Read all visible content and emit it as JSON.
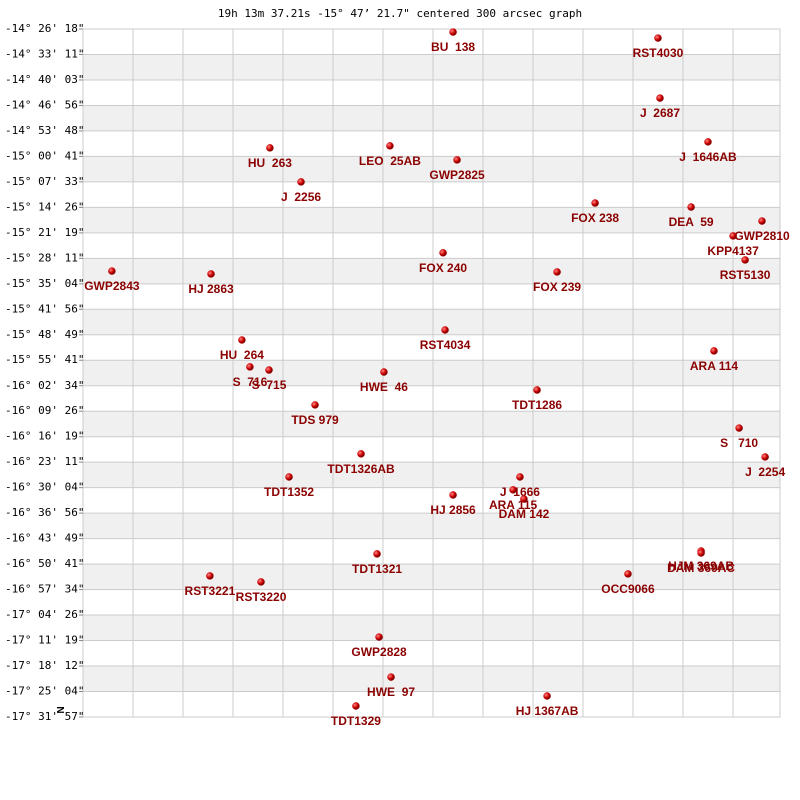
{
  "chart_data": {
    "type": "scatter",
    "title": "19h 13m 37.21s -15° 47’ 21.7\" centered 300 arcsec graph",
    "north_label": "N",
    "color": "#cc0000",
    "label_color": "#8b0000",
    "grid": true,
    "xlim": [
      -1.568,
      1.568
    ],
    "ylim": [
      -14.43833,
      -17.5325
    ],
    "yticks": [
      {
        "value": -14.43833,
        "label": "-14° 26' 18\""
      },
      {
        "value": -14.55306,
        "label": "-14° 33' 11\""
      },
      {
        "value": -14.6675,
        "label": "-14° 40' 03\""
      },
      {
        "value": -14.78222,
        "label": "-14° 46' 56\""
      },
      {
        "value": -14.89667,
        "label": "-14° 53' 48\""
      },
      {
        "value": -15.01139,
        "label": "-15° 00' 41\""
      },
      {
        "value": -15.12583,
        "label": "-15° 07' 33\""
      },
      {
        "value": -15.24056,
        "label": "-15° 14' 26\""
      },
      {
        "value": -15.35528,
        "label": "-15° 21' 19\""
      },
      {
        "value": -15.46972,
        "label": "-15° 28' 11\""
      },
      {
        "value": -15.58444,
        "label": "-15° 35' 04\""
      },
      {
        "value": -15.69889,
        "label": "-15° 41' 56\""
      },
      {
        "value": -15.81361,
        "label": "-15° 48' 49\""
      },
      {
        "value": -15.92806,
        "label": "-15° 55' 41\""
      },
      {
        "value": -16.04278,
        "label": "-16° 02' 34\""
      },
      {
        "value": -16.15722,
        "label": "-16° 09' 26\""
      },
      {
        "value": -16.27194,
        "label": "-16° 16' 19\""
      },
      {
        "value": -16.38639,
        "label": "-16° 23' 11\""
      },
      {
        "value": -16.50111,
        "label": "-16° 30' 04\""
      },
      {
        "value": -16.61556,
        "label": "-16° 36' 56\""
      },
      {
        "value": -16.73028,
        "label": "-16° 43' 49\""
      },
      {
        "value": -16.84472,
        "label": "-16° 50' 41\""
      },
      {
        "value": -16.95944,
        "label": "-16° 57' 34\""
      },
      {
        "value": -17.07389,
        "label": "-17° 04' 26\""
      },
      {
        "value": -17.18861,
        "label": "-17° 11' 19\""
      },
      {
        "value": -17.30333,
        "label": "-17° 18' 12\""
      },
      {
        "value": -17.41778,
        "label": "-17° 25' 04\""
      },
      {
        "value": -17.5325,
        "label": "-17° 31' 57\""
      }
    ],
    "labels": [
      "BU  138",
      "RST4030",
      "J  2687",
      "J  1646AB",
      "LEO  25AB",
      "HU  263",
      "GWP2825",
      "J  2256",
      "FOX 238",
      "DEA  59",
      "GWP2810",
      "KPP4137",
      "RST5130",
      "FOX 240",
      "GWP2843",
      "HJ 2863",
      "FOX 239",
      "RST4034",
      "HU  264",
      "ARA 114",
      "S  716",
      "S  715",
      "HWE  46",
      "TDT1286",
      "TDS 979",
      "S   710",
      "J  2254",
      "TDT1326AB",
      "TDT1352",
      "J  1666",
      "ARA 115",
      "DAM 142",
      "HJ 2856",
      "HJM 369AB",
      "DAM 369AC",
      "TDT1321",
      "OCC9066",
      "RST3221",
      "RST3220",
      "GWP2828",
      "HWE  97",
      "HJ 1367AB",
      "TDT1329"
    ],
    "x": [
      0.097,
      1.019,
      1.028,
      1.244,
      -0.187,
      -0.727,
      0.115,
      -0.587,
      0.736,
      1.168,
      1.487,
      1.357,
      1.411,
      0.052,
      -1.438,
      -0.992,
      0.565,
      0.061,
      -0.853,
      1.271,
      -0.817,
      -0.731,
      -0.214,
      0.475,
      -0.524,
      1.384,
      1.501,
      -0.317,
      -0.641,
      0.398,
      0.367,
      0.416,
      0.097,
      1.213,
      1.213,
      -0.245,
      0.884,
      -0.997,
      -0.767,
      -0.236,
      -0.182,
      0.52,
      -0.34
    ],
    "values": [
      -14.452,
      -14.479,
      -14.749,
      -14.946,
      -14.964,
      -14.973,
      -15.027,
      -15.126,
      -15.221,
      -15.239,
      -15.302,
      -15.369,
      -15.477,
      -15.445,
      -15.527,
      -15.54,
      -15.531,
      -15.792,
      -15.837,
      -15.886,
      -15.958,
      -15.972,
      -15.981,
      -16.062,
      -16.129,
      -16.233,
      -16.363,
      -16.349,
      -16.453,
      -16.453,
      -16.511,
      -16.552,
      -16.534,
      -16.786,
      -16.795,
      -16.799,
      -16.889,
      -16.898,
      -16.925,
      -17.173,
      -17.353,
      -17.438,
      -17.483
    ]
  }
}
